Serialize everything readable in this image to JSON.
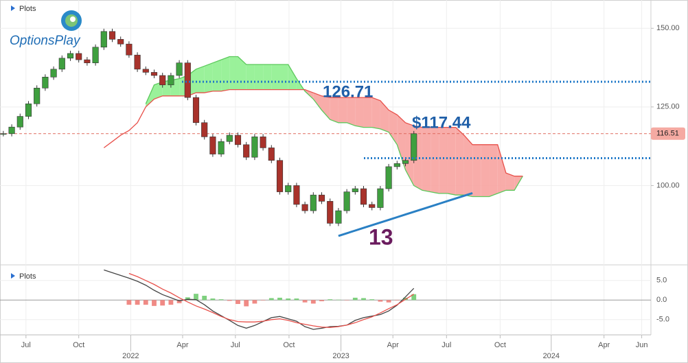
{
  "chart_data": {
    "type": "candlestick",
    "panel_label": "Plots",
    "logo": "OptionsPlay",
    "x": [
      0,
      1,
      2,
      3,
      4,
      5,
      6,
      7,
      8,
      9,
      10,
      11,
      12,
      13,
      14,
      15,
      16,
      17,
      18,
      19,
      20,
      21,
      22,
      23,
      24,
      25,
      26,
      27,
      28,
      29,
      30,
      31,
      32,
      33,
      34,
      35,
      36,
      37,
      38,
      39,
      40,
      41,
      42,
      43,
      44,
      45,
      46,
      47,
      48,
      49,
      50,
      51,
      52,
      53,
      54,
      55,
      56,
      57,
      58,
      59,
      60,
      61,
      62
    ],
    "xlim": [
      -0.4,
      77.3
    ],
    "xticks": [
      {
        "value": 2.7,
        "label": "Jul"
      },
      {
        "value": 9.0,
        "label": "Oct"
      },
      {
        "value": 15.2,
        "label": "2022"
      },
      {
        "value": 21.4,
        "label": "Apr"
      },
      {
        "value": 27.7,
        "label": "Jul"
      },
      {
        "value": 34.1,
        "label": "Oct"
      },
      {
        "value": 40.3,
        "label": "2023"
      },
      {
        "value": 46.5,
        "label": "Apr"
      },
      {
        "value": 52.9,
        "label": "Jul"
      },
      {
        "value": 59.3,
        "label": "Oct"
      },
      {
        "value": 65.4,
        "label": "2024"
      },
      {
        "value": 71.7,
        "label": "Apr"
      },
      {
        "value": 76.2,
        "label": "Jun"
      }
    ],
    "ylim": [
      75,
      159
    ],
    "yticks": [
      {
        "value": 100,
        "label": "100.00"
      },
      {
        "value": 125,
        "label": "125.00"
      },
      {
        "value": 150,
        "label": "150.00"
      }
    ],
    "grid": true,
    "candles": {
      "up_color": "#3f9f3f",
      "down_color": "#a8322b",
      "close": [
        116.5,
        118.6,
        122,
        126,
        131,
        134.5,
        137,
        140.5,
        142,
        140,
        139,
        144,
        149,
        146.5,
        145,
        141.5,
        137,
        136,
        135,
        132,
        135,
        139,
        128,
        120,
        115.5,
        110,
        114,
        116,
        113,
        109,
        115.5,
        112,
        108,
        98,
        100,
        94,
        92,
        97,
        95,
        88,
        92,
        98,
        99,
        94,
        93,
        99,
        106,
        107,
        108,
        116.5,
        null,
        null,
        null,
        null,
        null,
        null,
        null,
        null,
        null,
        null,
        null,
        null,
        null
      ]
    },
    "cloud": {
      "span_a": {
        "color": "#5cc95c",
        "fill": "#8ff08f",
        "values": [
          null,
          null,
          null,
          null,
          null,
          null,
          null,
          null,
          null,
          null,
          null,
          null,
          null,
          null,
          null,
          null,
          null,
          126,
          132,
          133,
          133.5,
          134,
          135,
          137,
          138,
          139,
          140,
          141,
          141,
          138.5,
          138.5,
          138.5,
          138.5,
          138.5,
          138.5,
          134,
          130,
          127.5,
          124,
          121,
          120,
          120,
          119,
          118.5,
          118.5,
          118,
          117,
          113,
          105,
          100,
          98.5,
          98,
          97.5,
          97.5,
          97,
          97,
          96.5,
          96.5,
          96.5,
          97.5,
          98.5,
          98.5,
          103
        ]
      },
      "span_b": {
        "color": "#e8504a",
        "fill": "#f7a3a0",
        "values": [
          null,
          null,
          null,
          null,
          null,
          null,
          null,
          null,
          null,
          null,
          null,
          null,
          112,
          114,
          116,
          117.5,
          120,
          125,
          127.5,
          128.5,
          128.5,
          128.5,
          128.5,
          129.5,
          129.5,
          130,
          130,
          130.5,
          130.5,
          130.5,
          130.5,
          130.5,
          130.5,
          130.5,
          130.5,
          130.5,
          130.5,
          129.5,
          128.5,
          128,
          128,
          128,
          128,
          128,
          128,
          127,
          124,
          122.5,
          120,
          119,
          118.5,
          118.5,
          118.5,
          118.5,
          118.5,
          116,
          113,
          113,
          113,
          113,
          104,
          103,
          103
        ]
      }
    },
    "last_price": {
      "value": 116.51,
      "label": "116.51",
      "color": "#e06a5f",
      "tag_color": "#f5aaa2"
    },
    "levels": {
      "color": "#1f78c8",
      "values": [
        133,
        108.7
      ]
    },
    "trendline": {
      "color": "#2a80c4",
      "values": [
        null,
        null,
        null,
        null,
        null,
        null,
        null,
        null,
        null,
        null,
        null,
        null,
        null,
        null,
        null,
        null,
        null,
        null,
        null,
        null,
        null,
        null,
        null,
        null,
        null,
        null,
        null,
        null,
        null,
        null,
        null,
        null,
        null,
        null,
        null,
        null,
        null,
        null,
        null,
        null,
        84,
        84.85,
        85.7,
        86.55,
        87.4,
        88.25,
        89.1,
        89.95,
        90.8,
        91.65,
        92.5,
        93.35,
        94.2,
        95.05,
        95.9,
        96.75,
        97.6,
        null,
        null,
        null,
        null,
        null,
        null
      ]
    },
    "annotations": [
      {
        "text": "126.71",
        "color": "#1f5fa8"
      },
      {
        "text": "$117.44",
        "color": "#1f5fa8"
      },
      {
        "text": "13",
        "color": "#6a1b5e"
      }
    ],
    "indicator": {
      "type": "macd",
      "panel_label": "Plots",
      "ylim": [
        -8.9,
        8.3
      ],
      "yticks": [
        {
          "value": 5,
          "label": "5.0"
        },
        {
          "value": 0,
          "label": "0.0"
        },
        {
          "value": -5,
          "label": "-5.0"
        }
      ],
      "macd": {
        "color": "#444444",
        "values": [
          null,
          null,
          null,
          null,
          null,
          null,
          null,
          null,
          null,
          null,
          null,
          null,
          7.7,
          7.0,
          6.3,
          5.6,
          4.8,
          3.8,
          2.5,
          1.4,
          0.6,
          -0.2,
          0.2,
          0.1,
          -1.2,
          -2.8,
          -4,
          -5.2,
          -6.5,
          -7.2,
          -6.5,
          -5.5,
          -4.5,
          -4.2,
          -4.8,
          -5.4,
          -6.8,
          -7.5,
          -7.2,
          -6.8,
          -6.7,
          -6.4,
          -5.2,
          -4.5,
          -4.1,
          -3.7,
          -2.8,
          -1.3,
          0.8,
          3.0,
          null,
          null,
          null,
          null,
          null,
          null,
          null,
          null,
          null,
          null,
          null,
          null,
          null
        ]
      },
      "signal": {
        "color": "#e8504a",
        "values": [
          null,
          null,
          null,
          null,
          null,
          null,
          null,
          null,
          null,
          null,
          null,
          null,
          null,
          null,
          null,
          6.8,
          6.0,
          5.0,
          4.0,
          2.8,
          1.8,
          0.6,
          -0.5,
          -1.5,
          -2.3,
          -3.2,
          -4.2,
          -5.0,
          -5.5,
          -5.6,
          -5.6,
          -5.4,
          -5.0,
          -4.8,
          -5.2,
          -5.8,
          -6.2,
          -6.6,
          -6.9,
          -7.0,
          -6.8,
          -6.4,
          -5.8,
          -5.0,
          -4.3,
          -3.3,
          -2.2,
          -1.2,
          0.2,
          1.5,
          null,
          null,
          null,
          null,
          null,
          null,
          null,
          null,
          null,
          null,
          null,
          null,
          null
        ]
      },
      "histogram": {
        "up_color": "#7ed07e",
        "down_color": "#f08a85",
        "values": [
          null,
          null,
          null,
          null,
          null,
          null,
          null,
          null,
          null,
          null,
          null,
          null,
          null,
          null,
          null,
          -1.2,
          -1.2,
          -1.2,
          -1.5,
          -1.4,
          -1.2,
          -0.8,
          0.7,
          1.6,
          1.1,
          0.4,
          0.2,
          -0.2,
          -1.0,
          -1.6,
          -0.9,
          -0.1,
          0.5,
          0.6,
          0.4,
          0.4,
          -0.6,
          -0.9,
          -0.3,
          0.2,
          0.1,
          0,
          0.6,
          0.5,
          0.2,
          -0.4,
          -0.6,
          -0.1,
          0.6,
          1.5,
          null,
          null,
          null,
          null,
          null,
          null,
          null,
          null,
          null,
          null,
          null,
          null,
          null
        ]
      }
    }
  }
}
